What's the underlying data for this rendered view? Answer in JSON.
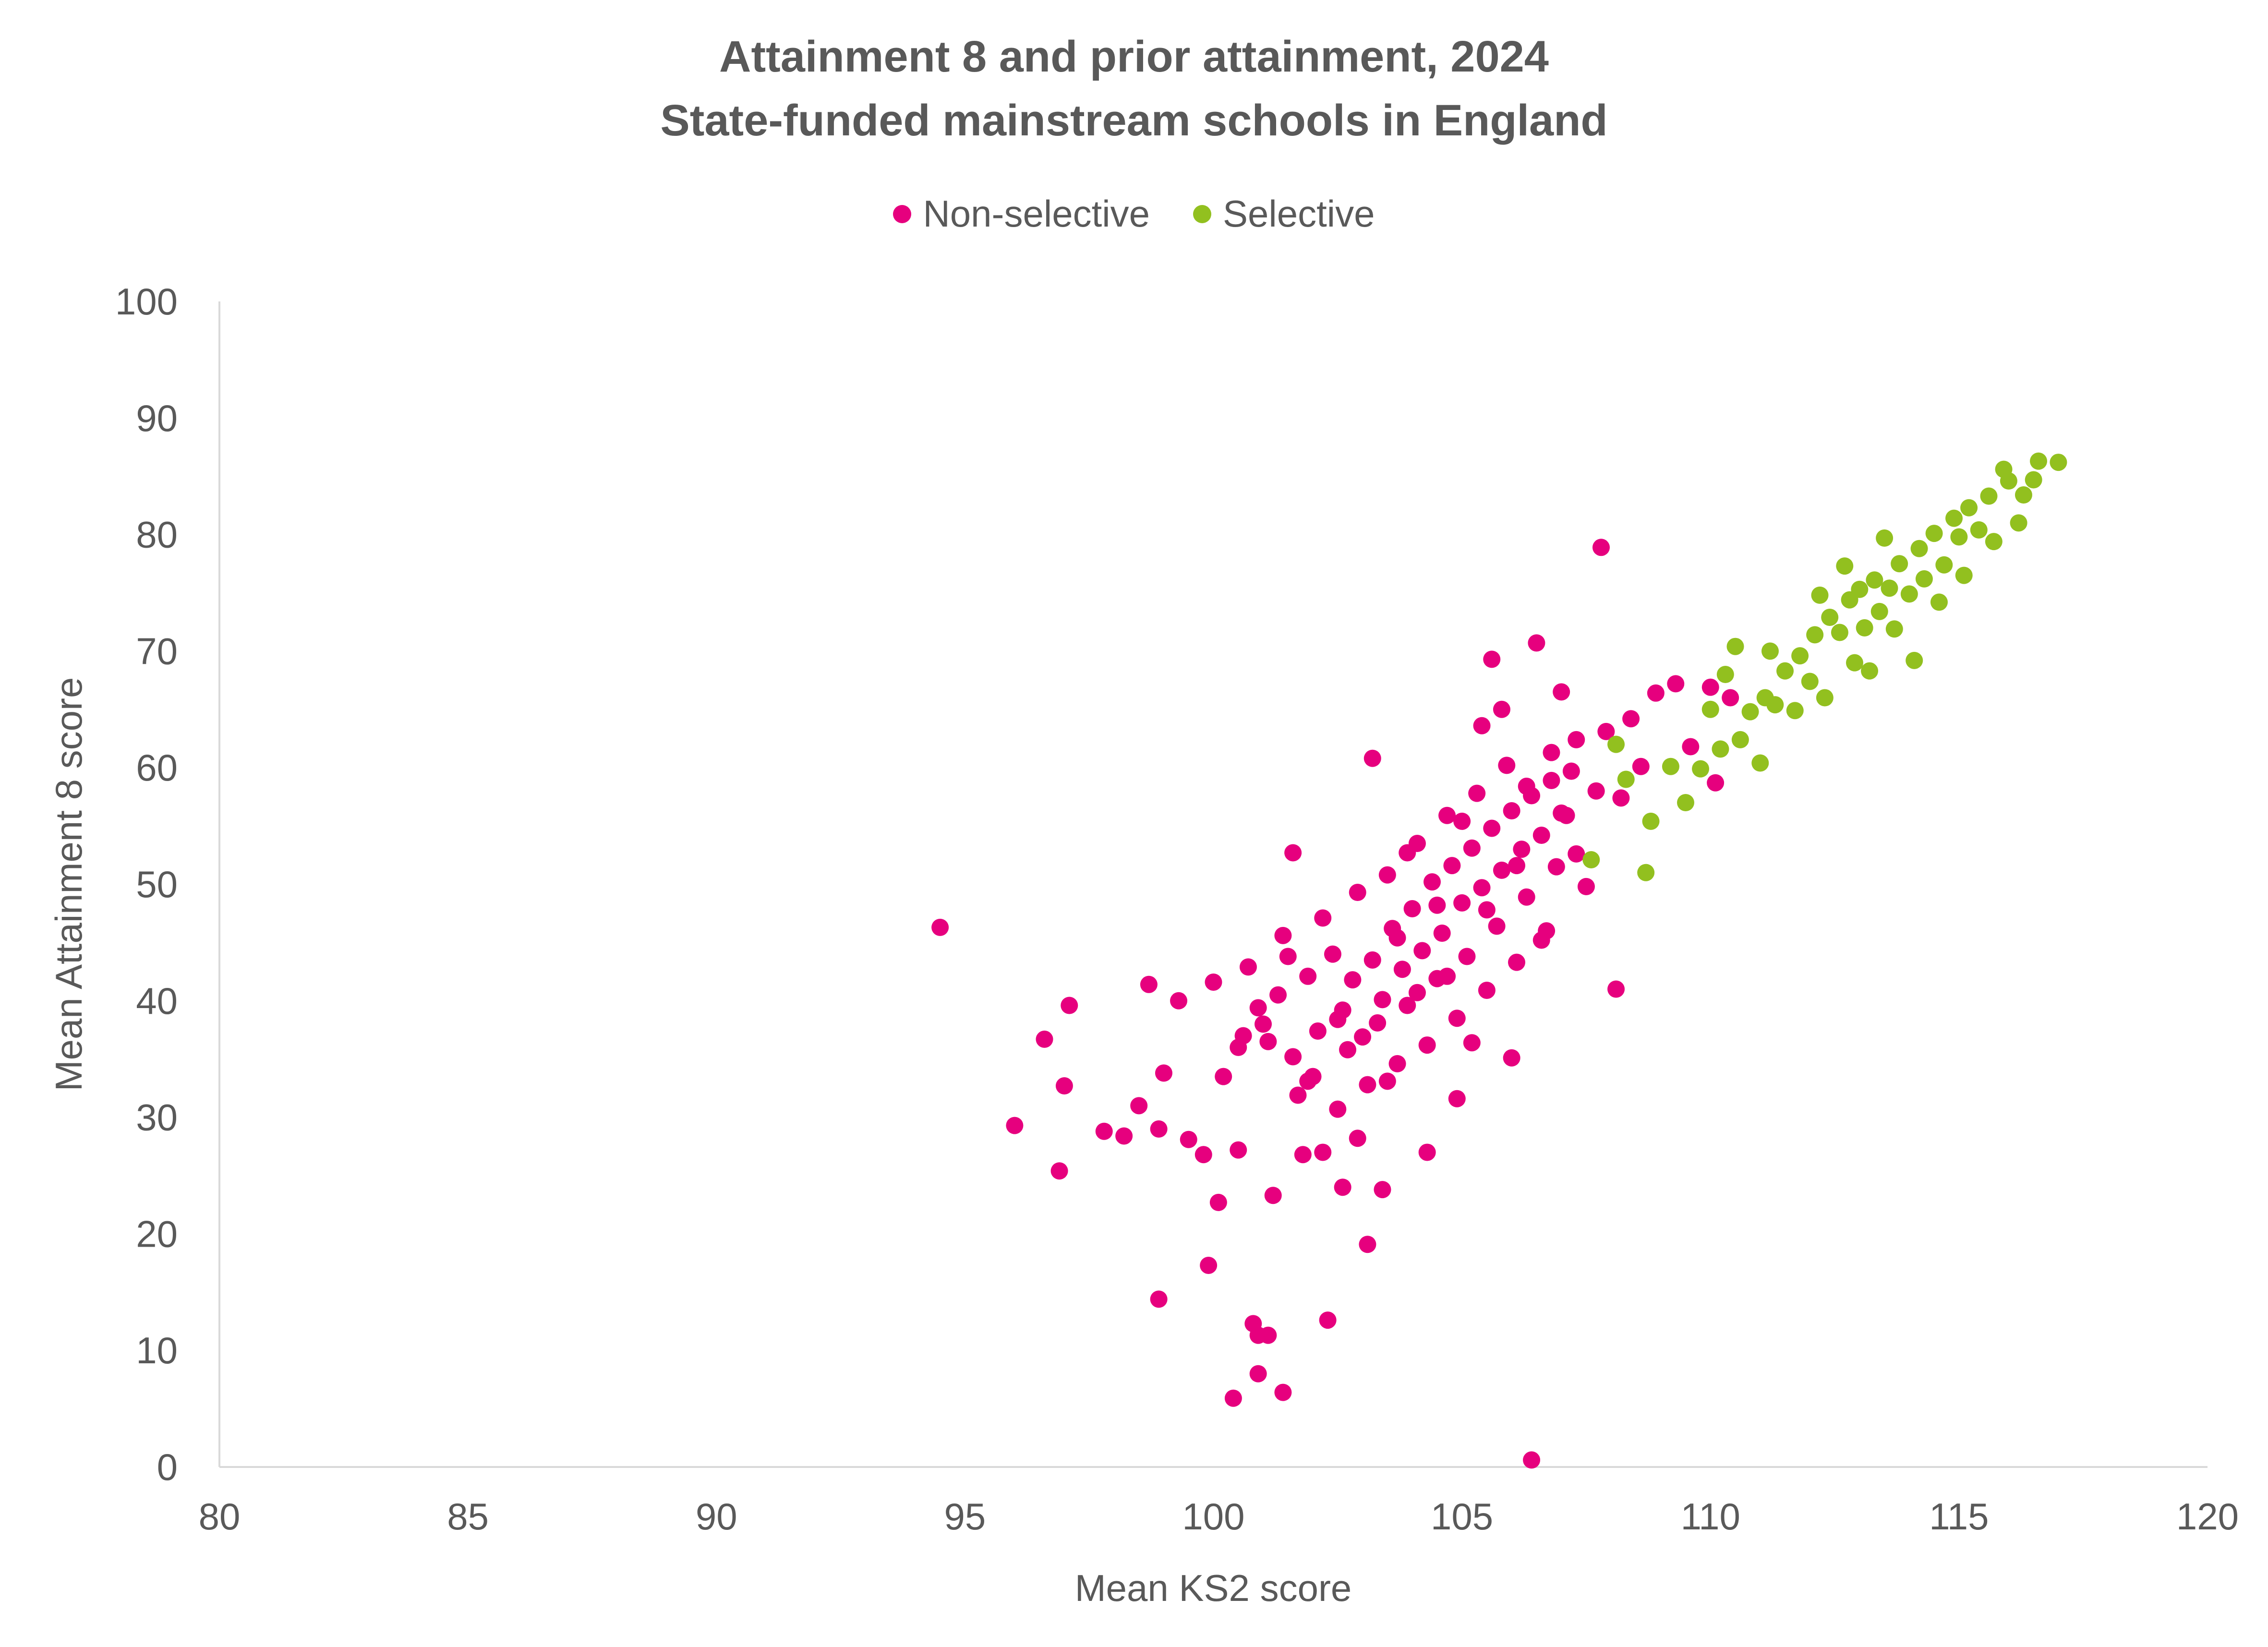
{
  "chart_data": {
    "type": "scatter",
    "title": "Attainment 8 and prior attainment, 2024",
    "subtitle": "State-funded mainstream schools in England",
    "xlabel": "Mean KS2 score",
    "ylabel": "Mean Attainment 8 score",
    "xlim": [
      80,
      120
    ],
    "ylim": [
      0,
      100
    ],
    "xticks": [
      "80",
      "85",
      "90",
      "95",
      "100",
      "105",
      "110",
      "115",
      "120"
    ],
    "yticks": [
      "0",
      "10",
      "20",
      "30",
      "40",
      "50",
      "60",
      "70",
      "80",
      "90",
      "100"
    ],
    "grid": false,
    "legend_position": "top",
    "series": [
      {
        "name": "Non-selective",
        "color": "#E6007E",
        "points": [
          [
            94.5,
            46.3
          ],
          [
            96.0,
            29.3
          ],
          [
            96.6,
            36.7
          ],
          [
            96.9,
            25.4
          ],
          [
            97.0,
            32.7
          ],
          [
            97.1,
            39.6
          ],
          [
            97.8,
            28.8
          ],
          [
            98.2,
            28.4
          ],
          [
            98.5,
            31.0
          ],
          [
            98.7,
            41.4
          ],
          [
            98.9,
            14.4
          ],
          [
            98.9,
            29.0
          ],
          [
            99.0,
            33.8
          ],
          [
            99.3,
            40.0
          ],
          [
            99.5,
            28.1
          ],
          [
            99.8,
            26.8
          ],
          [
            99.9,
            17.3
          ],
          [
            100.0,
            41.6
          ],
          [
            100.1,
            22.7
          ],
          [
            100.2,
            33.5
          ],
          [
            100.4,
            5.9
          ],
          [
            100.5,
            27.2
          ],
          [
            100.6,
            37.0
          ],
          [
            100.8,
            12.3
          ],
          [
            100.9,
            11.3
          ],
          [
            100.9,
            8.0
          ],
          [
            101.1,
            11.3
          ],
          [
            101.1,
            36.5
          ],
          [
            101.2,
            23.3
          ],
          [
            101.4,
            6.4
          ],
          [
            101.5,
            43.8
          ],
          [
            101.6,
            52.7
          ],
          [
            101.8,
            26.8
          ],
          [
            101.9,
            33.1
          ],
          [
            102.2,
            27.0
          ],
          [
            102.3,
            12.6
          ],
          [
            102.5,
            38.4
          ],
          [
            102.6,
            24.0
          ],
          [
            102.9,
            28.2
          ],
          [
            103.1,
            19.1
          ],
          [
            103.2,
            60.8
          ],
          [
            103.4,
            23.8
          ],
          [
            103.5,
            33.1
          ],
          [
            103.7,
            45.4
          ],
          [
            103.9,
            52.7
          ],
          [
            104.1,
            40.7
          ],
          [
            104.3,
            27.0
          ],
          [
            104.5,
            48.2
          ],
          [
            104.7,
            42.1
          ],
          [
            104.9,
            31.6
          ],
          [
            105.0,
            55.4
          ],
          [
            105.2,
            36.4
          ],
          [
            105.4,
            63.6
          ],
          [
            105.5,
            47.8
          ],
          [
            105.6,
            69.3
          ],
          [
            105.8,
            65.0
          ],
          [
            106.0,
            35.1
          ],
          [
            106.1,
            51.6
          ],
          [
            106.3,
            58.4
          ],
          [
            106.4,
            0.6
          ],
          [
            106.5,
            70.7
          ],
          [
            106.6,
            45.2
          ],
          [
            106.8,
            61.3
          ],
          [
            107.0,
            66.5
          ],
          [
            107.1,
            55.9
          ],
          [
            107.3,
            62.4
          ],
          [
            107.5,
            49.8
          ],
          [
            107.7,
            58.0
          ],
          [
            107.8,
            78.9
          ],
          [
            107.9,
            63.1
          ],
          [
            108.1,
            41.0
          ],
          [
            108.2,
            57.4
          ],
          [
            108.4,
            64.2
          ],
          [
            108.6,
            60.1
          ],
          [
            108.9,
            66.4
          ],
          [
            109.3,
            67.2
          ],
          [
            109.6,
            61.8
          ],
          [
            110.0,
            66.9
          ],
          [
            110.1,
            58.7
          ],
          [
            110.4,
            66.0
          ],
          [
            101.0,
            38.0
          ],
          [
            101.3,
            40.5
          ],
          [
            101.6,
            35.2
          ],
          [
            101.9,
            42.1
          ],
          [
            102.1,
            37.4
          ],
          [
            102.4,
            44.0
          ],
          [
            102.6,
            39.2
          ],
          [
            102.8,
            41.8
          ],
          [
            103.0,
            36.9
          ],
          [
            103.2,
            43.5
          ],
          [
            103.4,
            40.1
          ],
          [
            103.6,
            46.2
          ],
          [
            103.8,
            42.7
          ],
          [
            104.0,
            47.9
          ],
          [
            104.2,
            44.3
          ],
          [
            104.4,
            50.2
          ],
          [
            104.6,
            45.8
          ],
          [
            104.8,
            51.6
          ],
          [
            105.0,
            48.4
          ],
          [
            105.2,
            53.1
          ],
          [
            105.4,
            49.7
          ],
          [
            105.6,
            54.8
          ],
          [
            105.8,
            51.2
          ],
          [
            106.0,
            56.3
          ],
          [
            106.2,
            53.0
          ],
          [
            106.4,
            57.6
          ],
          [
            106.6,
            54.2
          ],
          [
            106.8,
            58.9
          ],
          [
            107.0,
            56.1
          ],
          [
            107.2,
            59.7
          ],
          [
            102.0,
            33.5
          ],
          [
            102.7,
            35.8
          ],
          [
            103.3,
            38.1
          ],
          [
            103.9,
            39.6
          ],
          [
            104.5,
            41.9
          ],
          [
            105.1,
            43.8
          ],
          [
            105.7,
            46.4
          ],
          [
            106.3,
            48.9
          ],
          [
            106.9,
            51.5
          ],
          [
            100.7,
            42.9
          ],
          [
            101.4,
            45.6
          ],
          [
            102.2,
            47.1
          ],
          [
            102.9,
            49.3
          ],
          [
            103.5,
            50.8
          ],
          [
            104.1,
            53.5
          ],
          [
            104.7,
            55.9
          ],
          [
            105.3,
            57.8
          ],
          [
            105.9,
            60.2
          ],
          [
            100.5,
            36.0
          ],
          [
            100.9,
            39.4
          ],
          [
            101.7,
            31.9
          ],
          [
            102.5,
            30.7
          ],
          [
            103.1,
            32.8
          ],
          [
            103.7,
            34.6
          ],
          [
            104.3,
            36.2
          ],
          [
            104.9,
            38.5
          ],
          [
            105.5,
            40.9
          ],
          [
            106.1,
            43.3
          ],
          [
            106.7,
            46.0
          ],
          [
            107.3,
            52.6
          ]
        ]
      },
      {
        "name": "Selective",
        "color": "#92C01F",
        "points": [
          [
            107.6,
            52.1
          ],
          [
            108.1,
            62.0
          ],
          [
            108.3,
            59.0
          ],
          [
            108.7,
            51.0
          ],
          [
            108.8,
            55.4
          ],
          [
            109.2,
            60.1
          ],
          [
            109.5,
            57.0
          ],
          [
            109.8,
            59.9
          ],
          [
            110.0,
            65.0
          ],
          [
            110.2,
            61.6
          ],
          [
            110.3,
            68.0
          ],
          [
            110.5,
            70.4
          ],
          [
            110.6,
            62.4
          ],
          [
            110.8,
            64.8
          ],
          [
            111.0,
            60.4
          ],
          [
            111.1,
            66.0
          ],
          [
            111.2,
            70.0
          ],
          [
            111.3,
            65.4
          ],
          [
            111.5,
            68.3
          ],
          [
            111.7,
            64.9
          ],
          [
            111.8,
            69.6
          ],
          [
            112.0,
            67.4
          ],
          [
            112.1,
            71.4
          ],
          [
            112.2,
            74.8
          ],
          [
            112.3,
            66.0
          ],
          [
            112.4,
            72.9
          ],
          [
            112.6,
            71.6
          ],
          [
            112.7,
            77.3
          ],
          [
            112.8,
            74.4
          ],
          [
            112.9,
            69.0
          ],
          [
            113.0,
            75.3
          ],
          [
            113.1,
            72.0
          ],
          [
            113.2,
            68.3
          ],
          [
            113.3,
            76.1
          ],
          [
            113.4,
            73.4
          ],
          [
            113.5,
            79.7
          ],
          [
            113.6,
            75.4
          ],
          [
            113.7,
            71.9
          ],
          [
            113.8,
            77.5
          ],
          [
            114.0,
            74.9
          ],
          [
            114.1,
            69.2
          ],
          [
            114.2,
            78.8
          ],
          [
            114.3,
            76.2
          ],
          [
            114.5,
            80.1
          ],
          [
            114.6,
            74.2
          ],
          [
            114.7,
            77.4
          ],
          [
            114.9,
            81.4
          ],
          [
            115.0,
            79.8
          ],
          [
            115.1,
            76.5
          ],
          [
            115.2,
            82.3
          ],
          [
            115.4,
            80.4
          ],
          [
            115.6,
            83.3
          ],
          [
            115.7,
            79.4
          ],
          [
            115.9,
            85.6
          ],
          [
            116.0,
            84.6
          ],
          [
            116.2,
            81.0
          ],
          [
            116.3,
            83.4
          ],
          [
            116.5,
            84.7
          ],
          [
            116.6,
            86.3
          ],
          [
            117.0,
            86.2
          ]
        ]
      }
    ]
  }
}
